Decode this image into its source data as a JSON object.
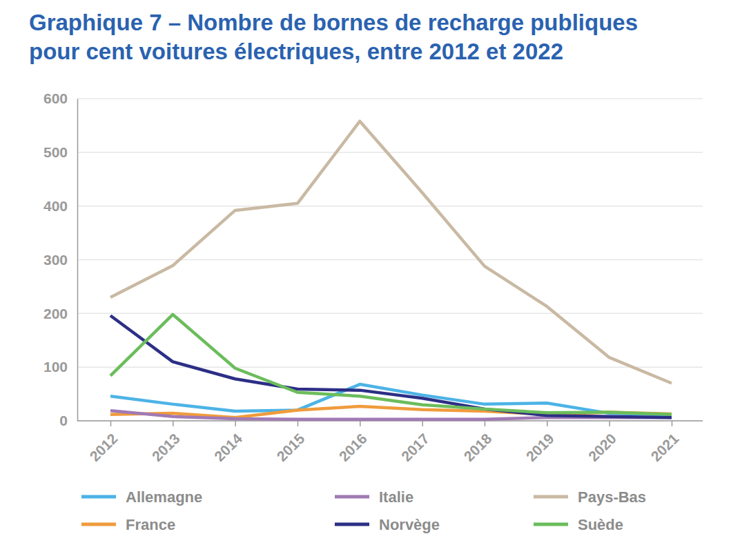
{
  "chart_data": {
    "type": "line",
    "title": "Graphique 7 – Nombre de bornes de recharge publiques\npour cent voitures électriques, entre 2012 et 2022",
    "categories": [
      "2012",
      "2013",
      "2014",
      "2015",
      "2016",
      "2017",
      "2018",
      "2019",
      "2020",
      "2021"
    ],
    "series": [
      {
        "name": "Allemagne",
        "color": "#4cb3e6",
        "values": [
          46,
          31,
          18,
          20,
          68,
          48,
          31,
          33,
          14,
          11
        ]
      },
      {
        "name": "France",
        "color": "#ef9b3c",
        "values": [
          12,
          14,
          6,
          20,
          27,
          21,
          18,
          12,
          16,
          13
        ]
      },
      {
        "name": "Italie",
        "color": "#a07ab5",
        "values": [
          19,
          8,
          4,
          3,
          3,
          3,
          3,
          6,
          6,
          6
        ]
      },
      {
        "name": "Norvège",
        "color": "#2c2f85",
        "values": [
          196,
          110,
          78,
          59,
          57,
          42,
          22,
          10,
          8,
          6
        ]
      },
      {
        "name": "Pays-Bas",
        "color": "#c9b9a3",
        "values": [
          230,
          289,
          392,
          405,
          558,
          425,
          288,
          213,
          118,
          70
        ]
      },
      {
        "name": "Suède",
        "color": "#6bbd5b",
        "values": [
          84,
          198,
          98,
          53,
          46,
          30,
          22,
          15,
          16,
          12
        ]
      }
    ],
    "ylim": [
      0,
      600
    ],
    "yticks": [
      0,
      100,
      200,
      300,
      400,
      500,
      600
    ],
    "grid": true,
    "legend": "bottom"
  }
}
